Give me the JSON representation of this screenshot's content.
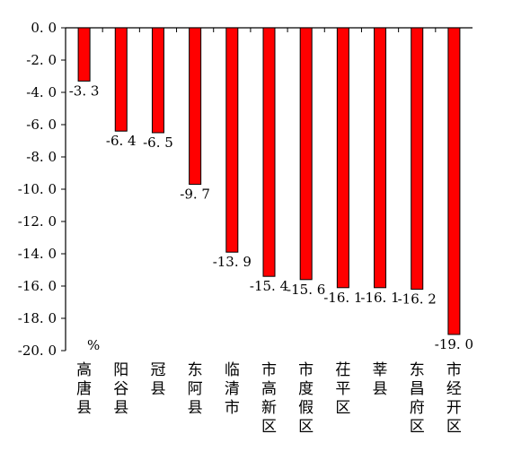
{
  "chart_data": {
    "type": "bar",
    "orientation": "vertical",
    "categories": [
      "高唐县",
      "阳谷县",
      "冠县",
      "东阿县",
      "临清市",
      "市高新区",
      "市度假区",
      "茌平区",
      "莘县",
      "东昌府区",
      "市经开区"
    ],
    "values": [
      -3.3,
      -6.4,
      -6.5,
      -9.7,
      -13.9,
      -15.4,
      -15.6,
      -16.1,
      -16.1,
      -16.2,
      -19.0
    ],
    "value_labels": [
      "-3. 3",
      "-6. 4",
      "-6. 5",
      "-9. 7",
      "-13. 9",
      "-15. 4",
      "-15. 6",
      "-16. 1",
      "-16. 1",
      "-16. 2",
      "-19. 0"
    ],
    "ylim": [
      -20,
      0
    ],
    "yticks": [
      0,
      -2,
      -4,
      -6,
      -8,
      -10,
      -12,
      -14,
      -16,
      -18,
      -20
    ],
    "ytick_labels": [
      "0. 0",
      "-2. 0",
      "-4. 0",
      "-6. 0",
      "-8. 0",
      "-10. 0",
      "-12. 0",
      "-14. 0",
      "-16. 0",
      "-18. 0",
      "-20. 0"
    ],
    "unit": "%",
    "bar_color": "#ff0000",
    "grid": false,
    "legend": "none",
    "title": "",
    "xlabel": "",
    "ylabel": ""
  }
}
